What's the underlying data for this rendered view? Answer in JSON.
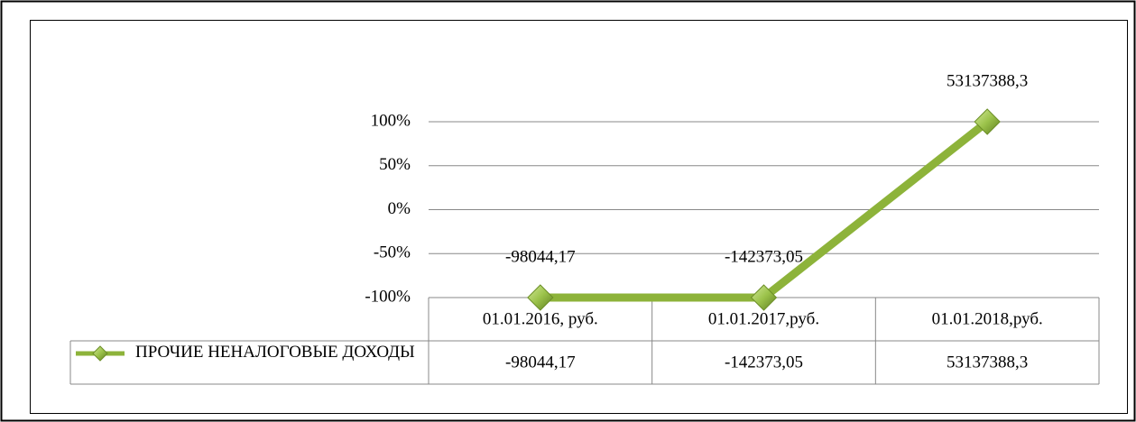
{
  "chart_data": {
    "type": "line",
    "stacking": "percent",
    "categories": [
      "01.01.2016, руб.",
      "01.01.2017,руб.",
      "01.01.2018,руб."
    ],
    "series": [
      {
        "name": "ПРОЧИЕ НЕНАЛОГОВЫЕ ДОХОДЫ",
        "color": "#8db33a",
        "values": [
          -98044.17,
          -142373.05,
          53137388.3
        ],
        "value_labels": [
          "-98044,17",
          "-142373,05",
          "53137388,3"
        ]
      }
    ],
    "ylim": [
      -100,
      100
    ],
    "yticks": [
      {
        "value": -100,
        "label": "-100%"
      },
      {
        "value": -50,
        "label": "-50%"
      },
      {
        "value": 0,
        "label": "0%"
      },
      {
        "value": 50,
        "label": "50%"
      },
      {
        "value": 100,
        "label": "100%"
      }
    ],
    "grid": true,
    "data_table": true
  }
}
